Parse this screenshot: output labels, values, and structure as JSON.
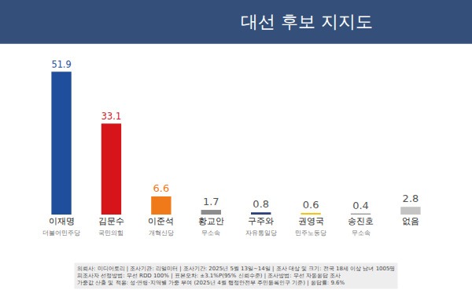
{
  "chart_data": {
    "type": "bar",
    "title": "대선 후보 지지도",
    "categories": [
      "이재명",
      "김문수",
      "이준석",
      "황교안",
      "구주와",
      "권영국",
      "송진호",
      "없음"
    ],
    "parties": [
      "더불어민주당",
      "국민의힘",
      "개혁신당",
      "무소속",
      "자유통일당",
      "민주노동당",
      "무소속",
      null
    ],
    "values": [
      51.9,
      33.1,
      6.6,
      1.7,
      0.8,
      0.6,
      0.4,
      2.8
    ],
    "colors": [
      "#1f4e9c",
      "#d7141a",
      "#f07a1a",
      "#8c8c8c",
      "#2b3f7a",
      "#f2c318",
      "#9a9a9a",
      "#c4c4c4"
    ],
    "ylim": [
      0,
      58
    ],
    "data_labels": true,
    "tick_labels": "x",
    "grid": false,
    "annotations": [
      "의뢰사: 미디어토리 | 조사기관: 리얼미터 | 조사기간: 2025년 5월 13일~14일 | 조사 대상 및 크기: 전국 18세 이상 남녀 1005명",
      "피조사자 선정방법: 무선 RDD 100% | 표본오차: ±3.1%P(95% 신뢰수준) | 조사방법: 무선 자동응답 조사",
      "가중값 산출 및 적용: 성·연령·지역별 가중 부여 (2025년 4월 행정안전부 주민등록인구 기준) | 응답률: 9.6%"
    ]
  }
}
